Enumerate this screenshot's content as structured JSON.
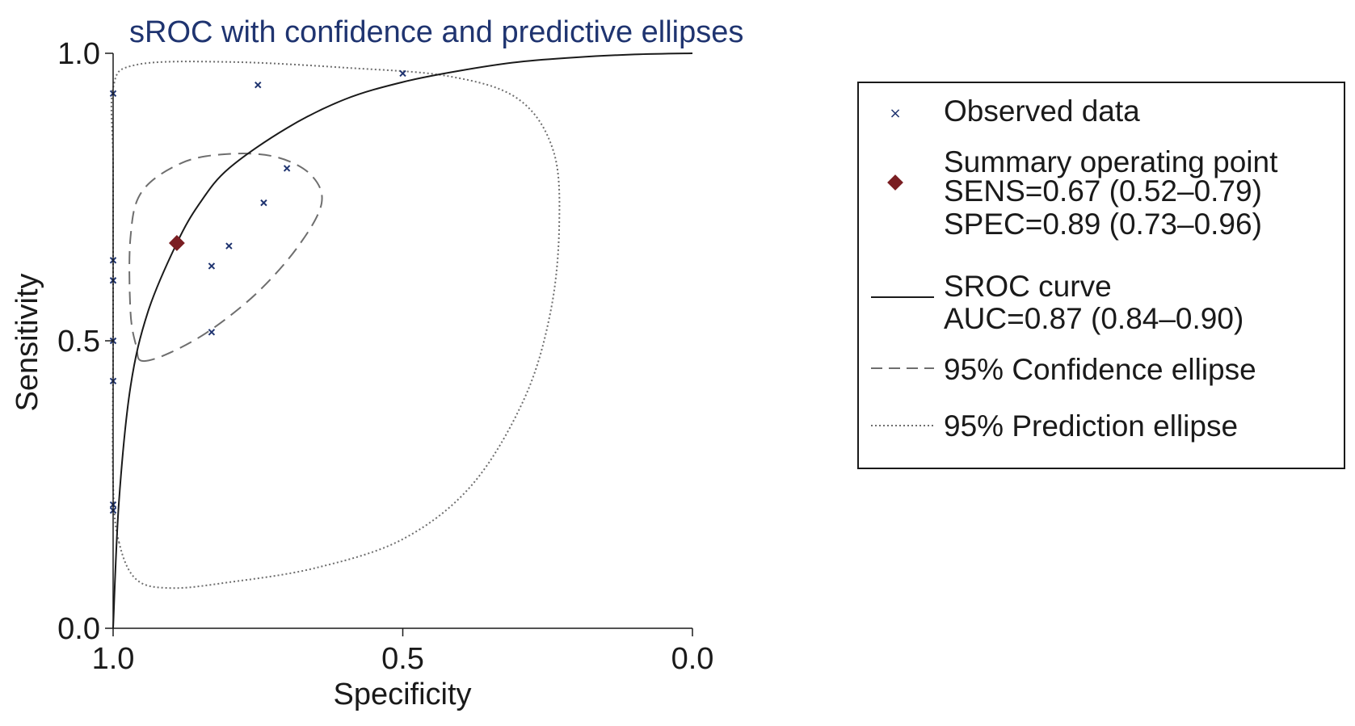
{
  "chart_data": {
    "type": "scatter",
    "title": "sROC with confidence and predictive ellipses",
    "xlabel": "Specificity",
    "ylabel": "Sensitivity",
    "x_reversed": true,
    "xlim": [
      1.0,
      0.0
    ],
    "ylim": [
      0.0,
      1.0
    ],
    "x_ticks": [
      "1.0",
      "0.5",
      "0.0"
    ],
    "y_ticks": [
      "0.0",
      "0.5",
      "1.0"
    ],
    "grid": false,
    "legend_position": "right",
    "colors": {
      "observed": "#1f3470",
      "summary": "#7a1e22",
      "curve": "#1a1a1a",
      "ellipse": "#6e6e6e"
    },
    "observed_data": [
      {
        "spec": 1.0,
        "sens": 0.93
      },
      {
        "spec": 1.0,
        "sens": 0.64
      },
      {
        "spec": 1.0,
        "sens": 0.605
      },
      {
        "spec": 1.0,
        "sens": 0.5
      },
      {
        "spec": 1.0,
        "sens": 0.43
      },
      {
        "spec": 1.0,
        "sens": 0.215
      },
      {
        "spec": 1.0,
        "sens": 0.205
      },
      {
        "spec": 0.75,
        "sens": 0.945
      },
      {
        "spec": 0.5,
        "sens": 0.965
      },
      {
        "spec": 0.7,
        "sens": 0.8
      },
      {
        "spec": 0.74,
        "sens": 0.74
      },
      {
        "spec": 0.8,
        "sens": 0.665
      },
      {
        "spec": 0.83,
        "sens": 0.63
      },
      {
        "spec": 0.83,
        "sens": 0.515
      }
    ],
    "summary_point": {
      "spec": 0.89,
      "sens": 0.67
    },
    "sroc_curve": [
      {
        "spec": 1.0,
        "sens": 0.0
      },
      {
        "spec": 0.99,
        "sens": 0.22
      },
      {
        "spec": 0.97,
        "sens": 0.42
      },
      {
        "spec": 0.94,
        "sens": 0.55
      },
      {
        "spec": 0.89,
        "sens": 0.67
      },
      {
        "spec": 0.85,
        "sens": 0.74
      },
      {
        "spec": 0.8,
        "sens": 0.8
      },
      {
        "spec": 0.7,
        "sens": 0.87
      },
      {
        "spec": 0.6,
        "sens": 0.92
      },
      {
        "spec": 0.5,
        "sens": 0.95
      },
      {
        "spec": 0.4,
        "sens": 0.97
      },
      {
        "spec": 0.3,
        "sens": 0.985
      },
      {
        "spec": 0.2,
        "sens": 0.993
      },
      {
        "spec": 0.1,
        "sens": 0.998
      },
      {
        "spec": 0.0,
        "sens": 1.0
      }
    ],
    "confidence_ellipse": [
      {
        "spec": 0.95,
        "sens": 0.465
      },
      {
        "spec": 0.9,
        "sens": 0.48
      },
      {
        "spec": 0.83,
        "sens": 0.52
      },
      {
        "spec": 0.75,
        "sens": 0.585
      },
      {
        "spec": 0.68,
        "sens": 0.665
      },
      {
        "spec": 0.64,
        "sens": 0.74
      },
      {
        "spec": 0.66,
        "sens": 0.79
      },
      {
        "spec": 0.72,
        "sens": 0.82
      },
      {
        "spec": 0.8,
        "sens": 0.825
      },
      {
        "spec": 0.88,
        "sens": 0.81
      },
      {
        "spec": 0.95,
        "sens": 0.76
      },
      {
        "spec": 0.97,
        "sens": 0.68
      },
      {
        "spec": 0.97,
        "sens": 0.55
      },
      {
        "spec": 0.96,
        "sens": 0.49
      }
    ],
    "prediction_ellipse": [
      {
        "spec": 0.99,
        "sens": 0.15
      },
      {
        "spec": 0.96,
        "sens": 0.085
      },
      {
        "spec": 0.9,
        "sens": 0.07
      },
      {
        "spec": 0.8,
        "sens": 0.08
      },
      {
        "spec": 0.65,
        "sens": 0.105
      },
      {
        "spec": 0.5,
        "sens": 0.155
      },
      {
        "spec": 0.38,
        "sens": 0.25
      },
      {
        "spec": 0.29,
        "sens": 0.4
      },
      {
        "spec": 0.245,
        "sens": 0.55
      },
      {
        "spec": 0.23,
        "sens": 0.7
      },
      {
        "spec": 0.24,
        "sens": 0.83
      },
      {
        "spec": 0.3,
        "sens": 0.92
      },
      {
        "spec": 0.42,
        "sens": 0.96
      },
      {
        "spec": 0.6,
        "sens": 0.975
      },
      {
        "spec": 0.8,
        "sens": 0.985
      },
      {
        "spec": 0.96,
        "sens": 0.98
      },
      {
        "spec": 1.0,
        "sens": 0.94
      },
      {
        "spec": 1.0,
        "sens": 0.8
      },
      {
        "spec": 1.0,
        "sens": 0.5
      },
      {
        "spec": 1.0,
        "sens": 0.25
      }
    ]
  },
  "legend": {
    "observed": "Observed data",
    "summary_line1": "Summary operating point",
    "summary_line2": "SENS=0.67 (0.52–0.79)",
    "summary_line3": "SPEC=0.89 (0.73–0.96)",
    "curve_line1": "SROC curve",
    "curve_line2": "AUC=0.87 (0.84–0.90)",
    "confidence": "95% Confidence ellipse",
    "prediction": "95% Prediction ellipse"
  }
}
